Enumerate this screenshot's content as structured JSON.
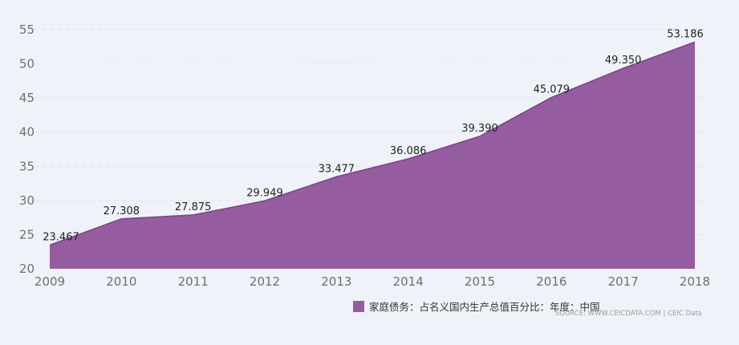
{
  "chart_data": {
    "type": "area",
    "x": [
      "2009",
      "2010",
      "2011",
      "2012",
      "2013",
      "2014",
      "2015",
      "2016",
      "2017",
      "2018"
    ],
    "values": [
      23.467,
      27.308,
      27.875,
      29.949,
      33.477,
      36.086,
      39.39,
      45.079,
      49.35,
      53.186
    ],
    "data_labels": [
      "23.467",
      "27.308",
      "27.875",
      "29.949",
      "33.477",
      "36.086",
      "39.390",
      "45.079",
      "49.350",
      "53.186"
    ],
    "y_ticks": [
      "20",
      "25",
      "30",
      "35",
      "40",
      "45",
      "50",
      "55"
    ],
    "ylim": [
      20,
      55
    ],
    "grid": true,
    "legend_position": "bottom-right",
    "series": [
      {
        "name": "家庭债务：占名义国内生产总值百分比：年度：中国",
        "color": "#955d9f"
      }
    ],
    "source": "SOURCE: WWW.CEICDATA.COM | CEIC Data"
  }
}
